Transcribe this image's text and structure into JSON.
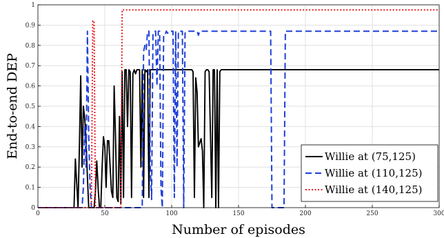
{
  "chart_data": {
    "type": "line",
    "title": "",
    "xlabel": "Number of episodes",
    "ylabel": "End-to-end DEP",
    "xlim": [
      0,
      300
    ],
    "ylim": [
      0,
      1
    ],
    "xticks": [
      0,
      50,
      100,
      150,
      200,
      250,
      300
    ],
    "yticks": [
      0,
      0.1,
      0.2,
      0.3,
      0.4,
      0.5,
      0.6,
      0.7,
      0.8,
      0.9,
      1
    ],
    "grid": true,
    "legend_position": "bottom-right",
    "series": [
      {
        "name": "Willie at (75,125)",
        "color": "#000000",
        "style": "solid",
        "x": [
          0,
          27,
          28,
          29,
          30,
          31,
          32,
          33,
          34,
          35,
          36,
          37,
          38,
          39,
          40,
          41,
          42,
          43,
          44,
          45,
          46,
          47,
          48,
          49,
          50,
          51,
          52,
          53,
          54,
          55,
          56,
          57,
          58,
          59,
          60,
          61,
          62,
          63,
          64,
          65,
          66,
          67,
          68,
          69,
          70,
          71,
          72,
          73,
          74,
          75,
          76,
          77,
          78,
          79,
          80,
          81,
          82,
          83,
          84,
          85,
          86,
          87,
          88,
          89,
          90,
          115,
          116,
          117,
          118,
          119,
          120,
          121,
          122,
          123,
          124,
          125,
          126,
          127,
          128,
          130,
          131,
          132,
          133,
          134,
          135,
          136,
          137,
          138,
          139,
          140,
          145,
          300
        ],
        "y": [
          0,
          0,
          0.24,
          0.12,
          0,
          0.3,
          0.65,
          0.2,
          0.5,
          0.44,
          0.33,
          0.15,
          0,
          0,
          0,
          0,
          0,
          0.08,
          0.23,
          0.1,
          0,
          0,
          0.2,
          0.35,
          0.3,
          0.1,
          0.33,
          0.33,
          0.2,
          0.08,
          0.05,
          0.6,
          0.35,
          0.05,
          0.03,
          0.45,
          0.02,
          0.67,
          0.05,
          0.68,
          0.68,
          0.4,
          0.68,
          0.67,
          0.05,
          0.66,
          0.68,
          0.66,
          0.68,
          0.68,
          0.68,
          0.2,
          0.68,
          0.05,
          0.68,
          0.67,
          0.68,
          0.05,
          0.68,
          0.68,
          0.68,
          0.68,
          0.68,
          0.68,
          0.68,
          0.68,
          0.67,
          0.05,
          0.64,
          0.57,
          0.3,
          0.32,
          0.34,
          0.28,
          0,
          0.67,
          0.68,
          0.68,
          0.67,
          0.05,
          0.68,
          0.68,
          0,
          0.68,
          0,
          0.67,
          0.68,
          0.68,
          0.68,
          0.68,
          0.68,
          0.68
        ]
      },
      {
        "name": "Willie at (110,125)",
        "color": "#1f3fd8",
        "style": "dashed",
        "x": [
          0,
          33,
          34,
          35,
          36,
          37,
          38,
          39,
          40,
          41,
          42,
          78,
          79,
          80,
          81,
          82,
          83,
          84,
          85,
          86,
          87,
          88,
          89,
          90,
          91,
          92,
          93,
          94,
          95,
          96,
          97,
          98,
          99,
          100,
          101,
          102,
          103,
          104,
          105,
          106,
          107,
          108,
          109,
          110,
          111,
          112,
          115,
          116,
          117,
          118,
          119,
          120,
          121,
          122,
          173,
          174,
          175,
          176,
          183,
          184,
          185,
          186,
          300
        ],
        "y": [
          0,
          0,
          0.1,
          0.4,
          0.2,
          0.87,
          0.35,
          0.1,
          0,
          0,
          0,
          0,
          0.77,
          0.8,
          0.78,
          0.87,
          0.87,
          0.2,
          0.04,
          0.85,
          0.87,
          0.87,
          0.6,
          0.87,
          0.87,
          0.1,
          0,
          0.85,
          0.85,
          0.87,
          0.86,
          0.87,
          0.87,
          0.87,
          0.87,
          0.05,
          0.87,
          0.2,
          0.87,
          0.87,
          0.87,
          0.87,
          0,
          0.86,
          0.87,
          0.87,
          0.87,
          0.87,
          0.87,
          0.87,
          0.87,
          0.85,
          0.87,
          0.87,
          0.87,
          0.87,
          0,
          0,
          0,
          0,
          0.87,
          0.87,
          0.87
        ]
      },
      {
        "name": "Willie at (140,125)",
        "color": "#e8181e",
        "style": "dotted",
        "x": [
          0,
          40,
          41,
          42,
          43,
          62,
          63,
          300
        ],
        "y": [
          0,
          0,
          0.92,
          0.92,
          0,
          0,
          0.975,
          0.975
        ]
      }
    ]
  }
}
